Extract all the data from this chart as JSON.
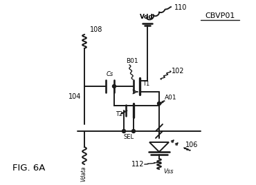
{
  "title": "FIG. 6A",
  "label_CBVP01": "CBVP01",
  "label_108": "108",
  "label_110": "110",
  "label_B01": "B01",
  "label_Vdd": "Vdd",
  "label_102": "102",
  "label_T1": "T1",
  "label_A01": "A01",
  "label_104": "104",
  "label_T2": "T2",
  "label_SEL": "SEL",
  "label_Vdata": "Vdata",
  "label_112": "112",
  "label_Vss": "Vss",
  "label_106": "106",
  "label_Cs": "Cs",
  "bg_color": "#ffffff",
  "line_color": "#1a1a1a"
}
